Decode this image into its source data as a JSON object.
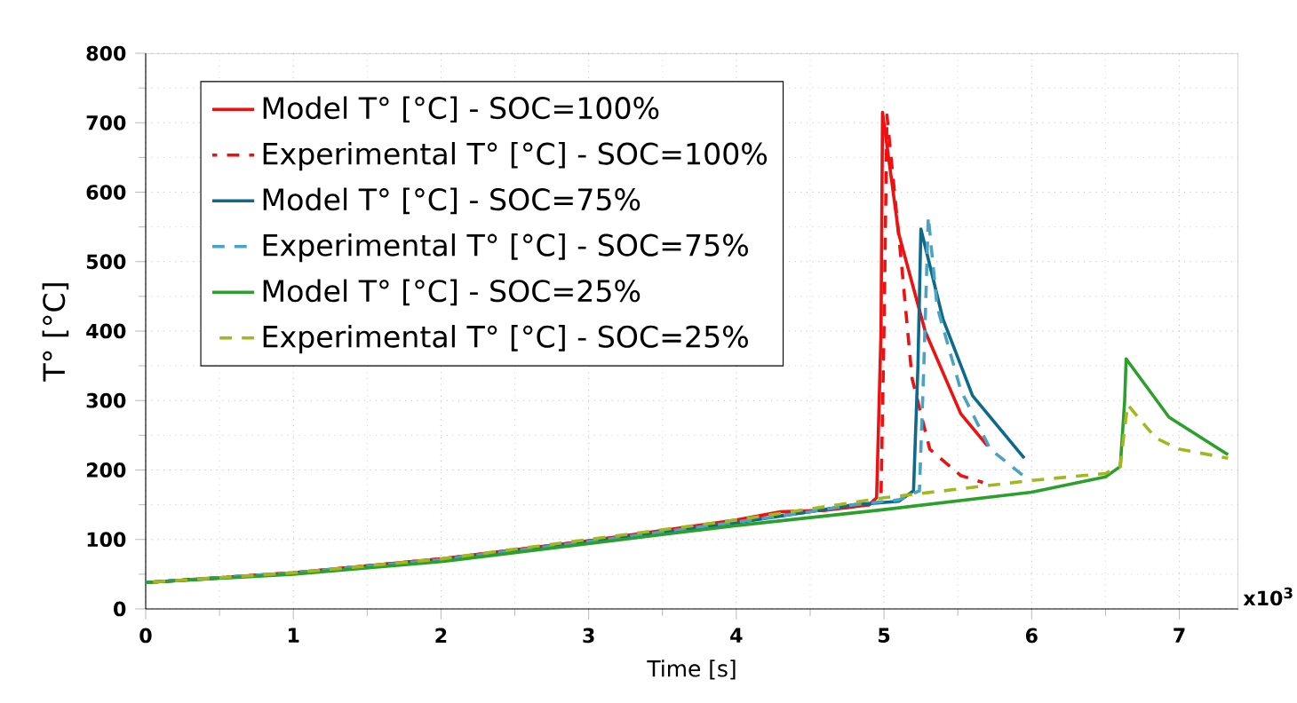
{
  "chart_data": {
    "type": "line",
    "xlabel": "Time [s]",
    "ylabel": "T° [°C]",
    "xlim": [
      0,
      7.4
    ],
    "xticks": [
      0,
      1,
      2,
      3,
      4,
      5,
      6,
      7
    ],
    "ylim": [
      0,
      800
    ],
    "yticks": [
      0,
      100,
      200,
      300,
      400,
      500,
      600,
      700,
      800
    ],
    "grid": true,
    "legend": "top left",
    "annotations": [
      "x10$^{3}$"
    ],
    "series": [
      {
        "name": "Model T° [°C] - SOC=100%",
        "color": "#ee1111",
        "line_style": "solid",
        "x": [
          0,
          1,
          2,
          3,
          4,
          4.3,
          4.6,
          4.9,
          4.95,
          4.98,
          4.99,
          5.1,
          5.28,
          5.52,
          5.7
        ],
        "values": [
          38,
          52,
          72,
          98,
          128,
          140,
          142,
          150,
          160,
          400,
          715,
          540,
          399,
          281,
          235
        ]
      },
      {
        "name": "Experimental T° [°C] - SOC=100%",
        "color": "#ee1111",
        "line_style": "dashed",
        "x": [
          0,
          1,
          2,
          3,
          4,
          4.5,
          4.9,
          4.98,
          5.0,
          5.02,
          5.12,
          5.19,
          5.31,
          5.52,
          5.67
        ],
        "values": [
          38,
          52,
          72,
          98,
          126,
          140,
          150,
          165,
          400,
          711,
          494,
          332,
          230,
          192,
          182
        ]
      },
      {
        "name": "Model T° [°C] - SOC=75%",
        "color": "#0e6a8a",
        "line_style": "solid",
        "x": [
          0,
          1,
          2,
          3,
          4,
          4.5,
          4.8,
          5.1,
          5.2,
          5.23,
          5.25,
          5.4,
          5.6,
          5.95
        ],
        "values": [
          38,
          51,
          70,
          96,
          124,
          140,
          150,
          155,
          170,
          350,
          547,
          417,
          307,
          217
        ]
      },
      {
        "name": "Experimental T° [°C] - SOC=75%",
        "color": "#4aa3c0",
        "line_style": "dashed",
        "x": [
          0,
          1,
          2,
          3,
          4,
          4.5,
          4.8,
          5.1,
          5.24,
          5.27,
          5.3,
          5.36,
          5.52,
          5.72,
          5.96
        ],
        "values": [
          38,
          52,
          71,
          97,
          125,
          140,
          150,
          157,
          170,
          350,
          565,
          435,
          315,
          230,
          189
        ]
      },
      {
        "name": "Model T° [°C] - SOC=25%",
        "color": "#2ca02c",
        "line_style": "solid",
        "x": [
          0,
          1,
          2,
          3,
          4,
          5,
          6,
          6.5,
          6.6,
          6.63,
          6.64,
          6.93,
          7.33
        ],
        "values": [
          38,
          50,
          68,
          94,
          120,
          143,
          168,
          190,
          205,
          300,
          360,
          276,
          222
        ]
      },
      {
        "name": "Experimental T° [°C] - SOC=25%",
        "color": "#a3b81f",
        "line_style": "dashed",
        "x": [
          0,
          1,
          2,
          3,
          4,
          5,
          6,
          6.5,
          6.6,
          6.63,
          6.65,
          6.84,
          7.0,
          7.33
        ],
        "values": [
          38,
          52,
          72,
          100,
          128,
          160,
          185,
          195,
          205,
          260,
          294,
          246,
          230,
          217
        ]
      }
    ]
  }
}
